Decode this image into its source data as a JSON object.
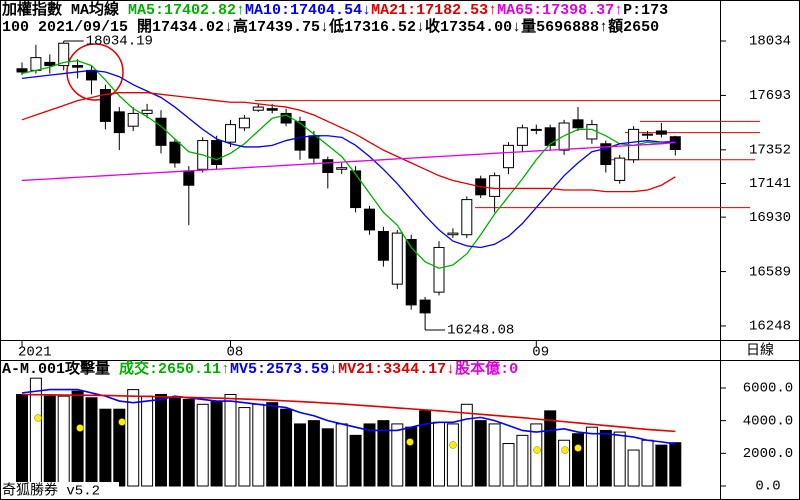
{
  "chart_data": [
    {
      "type": "candlestick",
      "title": "加權指數 MA均線 ",
      "title_tail": "P:173",
      "info": "100 2021/09/15 開17434.02↓高17439.75↓低17316.52↓收17354.00↓量5696888↑額2650",
      "categories": [
        "2021",
        null,
        null,
        null,
        null,
        null,
        null,
        null,
        null,
        null,
        null,
        null,
        null,
        null,
        null,
        "08",
        null,
        null,
        null,
        null,
        null,
        null,
        null,
        null,
        null,
        null,
        null,
        null,
        null,
        null,
        null,
        null,
        null,
        null,
        null,
        null,
        null,
        "09",
        null,
        null,
        null,
        null,
        null,
        null,
        null,
        null,
        null,
        null
      ],
      "period": "日線",
      "open": [
        17860,
        17850,
        17900,
        17880,
        17880,
        17850,
        17730,
        17590,
        17500,
        17580,
        17550,
        17400,
        17220,
        17230,
        17410,
        17400,
        17490,
        17600,
        17610,
        17580,
        17530,
        17440,
        17290,
        17230,
        17220,
        16980,
        16840,
        16510,
        16790,
        16410,
        16460,
        16820,
        16820,
        17170,
        17060,
        17240,
        17380,
        17480,
        17490,
        17350,
        17540,
        17420,
        17390,
        17160,
        17290,
        17450,
        17470,
        17434.02
      ],
      "high": [
        17900,
        18010,
        17950,
        18034.19,
        17920,
        17880,
        17760,
        17620,
        17620,
        17640,
        17600,
        17420,
        17250,
        17430,
        17440,
        17540,
        17570,
        17640,
        17640,
        17610,
        17560,
        17470,
        17310,
        17270,
        17250,
        17000,
        16870,
        16850,
        16820,
        16430,
        16780,
        16860,
        17060,
        17190,
        17210,
        17400,
        17510,
        17510,
        17510,
        17540,
        17620,
        17540,
        17410,
        17320,
        17500,
        17470,
        17520,
        17439.75
      ],
      "low": [
        17820,
        17830,
        17830,
        17850,
        17800,
        17700,
        17480,
        17350,
        17470,
        17550,
        17330,
        17240,
        16880,
        17210,
        17230,
        17370,
        17470,
        17590,
        17580,
        17500,
        17290,
        17260,
        17110,
        17200,
        16960,
        16820,
        16620,
        16480,
        16350,
        16248.08,
        16440,
        16800,
        16800,
        17050,
        16960,
        17200,
        17340,
        17450,
        17350,
        17320,
        17470,
        17390,
        17210,
        17140,
        17270,
        17420,
        17430,
        17316.52
      ],
      "close": [
        17840,
        17930,
        17880,
        18020,
        17870,
        17790,
        17530,
        17460,
        17580,
        17600,
        17380,
        17270,
        17130,
        17410,
        17260,
        17510,
        17550,
        17620,
        17600,
        17520,
        17350,
        17300,
        17210,
        17240,
        16990,
        16850,
        16660,
        16830,
        16380,
        16330,
        16740,
        16830,
        17040,
        17070,
        17190,
        17380,
        17490,
        17480,
        17380,
        17520,
        17490,
        17510,
        17260,
        17300,
        17480,
        17450,
        17450,
        17354.0
      ],
      "series": [
        {
          "label": "MA5:17402.82↑",
          "color": "#00b000",
          "values": [
            17830,
            17850,
            17870,
            17900,
            17910,
            17880,
            17790,
            17690,
            17610,
            17560,
            17500,
            17420,
            17340,
            17320,
            17290,
            17330,
            17390,
            17470,
            17550,
            17570,
            17520,
            17450,
            17380,
            17310,
            17200,
            17080,
            16960,
            16880,
            16740,
            16650,
            16610,
            16630,
            16700,
            16820,
            16950,
            17060,
            17170,
            17290,
            17390,
            17440,
            17480,
            17480,
            17440,
            17390,
            17380,
            17400,
            17390,
            17402.82
          ]
        },
        {
          "label": "MA10:17404.54↓",
          "color": "#0000ff",
          "values": [
            17800,
            17810,
            17820,
            17830,
            17840,
            17850,
            17840,
            17810,
            17760,
            17720,
            17680,
            17620,
            17550,
            17480,
            17420,
            17390,
            17370,
            17370,
            17380,
            17410,
            17430,
            17440,
            17440,
            17430,
            17380,
            17310,
            17230,
            17140,
            17040,
            16940,
            16850,
            16780,
            16750,
            16740,
            16760,
            16810,
            16890,
            16990,
            17090,
            17190,
            17270,
            17340,
            17360,
            17390,
            17400,
            17410,
            17400,
            17404.54
          ]
        },
        {
          "label": "MA21:17182.53↑",
          "color": "#e00000",
          "values": [
            17540,
            17570,
            17600,
            17630,
            17660,
            17680,
            17700,
            17710,
            17710,
            17710,
            17700,
            17690,
            17680,
            17670,
            17660,
            17650,
            17650,
            17640,
            17630,
            17620,
            17600,
            17570,
            17530,
            17490,
            17450,
            17400,
            17350,
            17310,
            17270,
            17230,
            17190,
            17160,
            17140,
            17120,
            17110,
            17110,
            17110,
            17110,
            17110,
            17100,
            17100,
            17100,
            17090,
            17090,
            17090,
            17100,
            17130,
            17182.53
          ]
        },
        {
          "label": "MA65:17398.37↑",
          "color": "#e000e0",
          "values": [
            17160,
            17165,
            17170,
            17175,
            17180,
            17185,
            17190,
            17195,
            17200,
            17205,
            17210,
            17215,
            17220,
            17225,
            17230,
            17235,
            17240,
            17245,
            17250,
            17255,
            17260,
            17265,
            17270,
            17275,
            17280,
            17285,
            17290,
            17295,
            17300,
            17305,
            17310,
            17315,
            17320,
            17325,
            17330,
            17335,
            17340,
            17345,
            17350,
            17355,
            17360,
            17365,
            17370,
            17375,
            17380,
            17385,
            17390,
            17398.37
          ]
        }
      ],
      "reference_lines": [
        17660,
        17530,
        17460,
        17290,
        16990
      ],
      "reference_color": "#e00000",
      "ylim": [
        16160,
        18291
      ],
      "yticks": [
        18034,
        17693,
        17352,
        17141,
        16930,
        16589,
        16248
      ]
    },
    {
      "type": "bar",
      "title": "A-M.001攻擊量 ",
      "volume_label": "成交:2650.11↑",
      "volume_label_color": "#00b000",
      "title_tail": "股本億:0",
      "tail_color": "#e000e0",
      "values": [
        5600,
        6600,
        5500,
        5500,
        5800,
        5400,
        4700,
        4700,
        5900,
        5500,
        5600,
        5400,
        5300,
        5000,
        5200,
        5600,
        4800,
        5000,
        5100,
        4700,
        3800,
        4000,
        3500,
        3800,
        3100,
        3800,
        4000,
        3800,
        3600,
        4600,
        3900,
        3800,
        5000,
        4000,
        3800,
        2600,
        3100,
        3800,
        4600,
        2800,
        3200,
        3600,
        3400,
        3300,
        2200,
        2800,
        2500,
        2650.11
      ],
      "series": [
        {
          "label": "MV5:2573.59↓",
          "color": "#0000ff",
          "values": [
            5700,
            5800,
            5900,
            5900,
            5900,
            5700,
            5500,
            5200,
            5100,
            5200,
            5300,
            5500,
            5400,
            5300,
            5200,
            5200,
            5100,
            5000,
            4900,
            4800,
            4500,
            4300,
            4000,
            3800,
            3600,
            3400,
            3400,
            3400,
            3600,
            3800,
            3900,
            3900,
            4100,
            4200,
            4000,
            3700,
            3400,
            3300,
            3400,
            3500,
            3300,
            3200,
            3200,
            3100,
            3000,
            2800,
            2700,
            2573.59
          ]
        },
        {
          "label": "MV21:3344.17↓",
          "color": "#e00000",
          "values": [
            5600,
            5590,
            5580,
            5570,
            5560,
            5550,
            5540,
            5520,
            5500,
            5480,
            5460,
            5440,
            5420,
            5400,
            5380,
            5350,
            5320,
            5290,
            5250,
            5210,
            5170,
            5120,
            5070,
            5020,
            4960,
            4900,
            4840,
            4780,
            4720,
            4660,
            4600,
            4530,
            4460,
            4390,
            4320,
            4250,
            4180,
            4100,
            4020,
            3940,
            3860,
            3780,
            3700,
            3620,
            3540,
            3460,
            3400,
            3344.17
          ]
        }
      ],
      "ylim": [
        0,
        7100
      ],
      "yticks": [
        {
          "value": 6000,
          "label": "6000.0"
        },
        {
          "value": 4000,
          "label": "4000.0"
        },
        {
          "value": 2000,
          "label": "2000.0"
        },
        {
          "value": 0,
          "label": "0.0"
        }
      ]
    },
    {
      "type": "footer",
      "text": "奇狐勝券 v5.2"
    }
  ]
}
